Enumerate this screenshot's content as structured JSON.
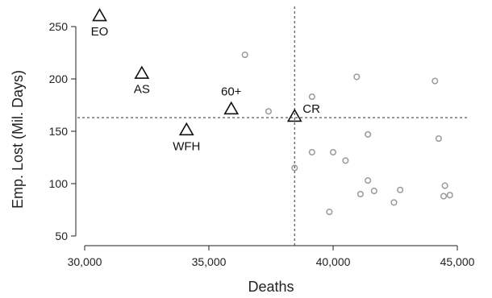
{
  "chart_data": {
    "type": "scatter",
    "xlabel": "Deaths",
    "ylabel": "Emp. Lost (Mil. Days)",
    "xlim": [
      30000,
      45000
    ],
    "ylim": [
      50,
      250
    ],
    "xticks": [
      30000,
      35000,
      40000,
      45000
    ],
    "xtick_labels": [
      "30,000",
      "35,000",
      "40,000",
      "45,000"
    ],
    "yticks": [
      50,
      100,
      150,
      200,
      250
    ],
    "ytick_labels": [
      "50",
      "100",
      "150",
      "200",
      "250"
    ],
    "reference_lines": {
      "x": 38450,
      "y": 163
    },
    "strategies": [
      {
        "label": "EO",
        "x": 30600,
        "y": 260
      },
      {
        "label": "AS",
        "x": 32300,
        "y": 205
      },
      {
        "label": "60+",
        "x": 35900,
        "y": 171
      },
      {
        "label": "WFH",
        "x": 34100,
        "y": 151
      },
      {
        "label": "CR",
        "x": 38450,
        "y": 164
      }
    ],
    "points": [
      {
        "x": 36450,
        "y": 223
      },
      {
        "x": 37400,
        "y": 169
      },
      {
        "x": 38450,
        "y": 115
      },
      {
        "x": 39150,
        "y": 183
      },
      {
        "x": 39150,
        "y": 130
      },
      {
        "x": 39850,
        "y": 73
      },
      {
        "x": 40000,
        "y": 130
      },
      {
        "x": 40500,
        "y": 122
      },
      {
        "x": 40950,
        "y": 202
      },
      {
        "x": 41100,
        "y": 90
      },
      {
        "x": 41400,
        "y": 147
      },
      {
        "x": 41400,
        "y": 103
      },
      {
        "x": 41650,
        "y": 93
      },
      {
        "x": 42450,
        "y": 82
      },
      {
        "x": 42700,
        "y": 94
      },
      {
        "x": 44100,
        "y": 198
      },
      {
        "x": 44250,
        "y": 143
      },
      {
        "x": 44500,
        "y": 98
      },
      {
        "x": 44450,
        "y": 88
      },
      {
        "x": 44700,
        "y": 89
      }
    ],
    "grid": false,
    "legend": "none"
  }
}
